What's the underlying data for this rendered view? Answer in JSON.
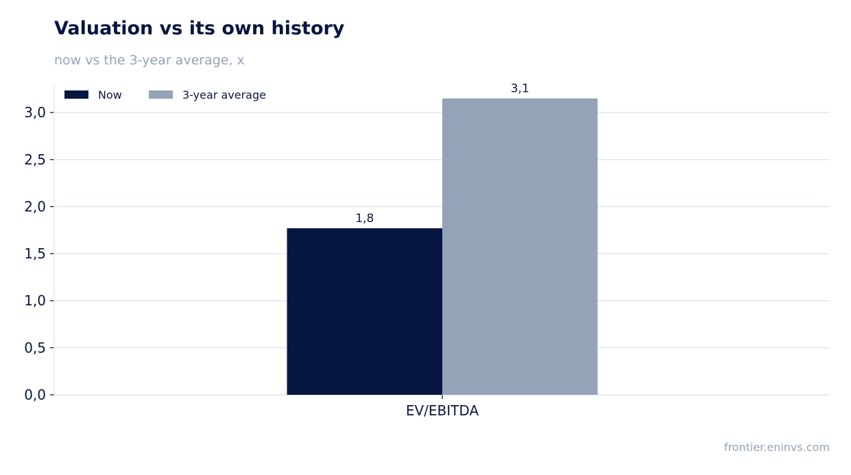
{
  "header": {
    "title": "Valuation vs its own history",
    "subtitle": "now vs the 3-year average, x"
  },
  "footer": {
    "source": "frontier.eninvs.com"
  },
  "colors": {
    "now": "#071640",
    "average": "#94a3b8",
    "grid": "#e2e6ee",
    "text": "#081640"
  },
  "chart_data": {
    "type": "bar",
    "title": "Valuation vs its own history",
    "subtitle": "now vs the 3-year average, x",
    "categories": [
      "EV/EBITDA"
    ],
    "series": [
      {
        "name": "Now",
        "values": [
          1.77
        ],
        "label": "1,8",
        "color": "#071640"
      },
      {
        "name": "3-year average",
        "values": [
          3.15
        ],
        "label": "3,1",
        "color": "#94a3b8"
      }
    ],
    "y_ticks": [
      "0,0",
      "0,5",
      "1,0",
      "1,5",
      "2,0",
      "2,5",
      "3,0"
    ],
    "ylim": [
      0,
      3.3
    ],
    "grid": true,
    "legend_position": "top-left",
    "xlabel": "",
    "ylabel": ""
  }
}
